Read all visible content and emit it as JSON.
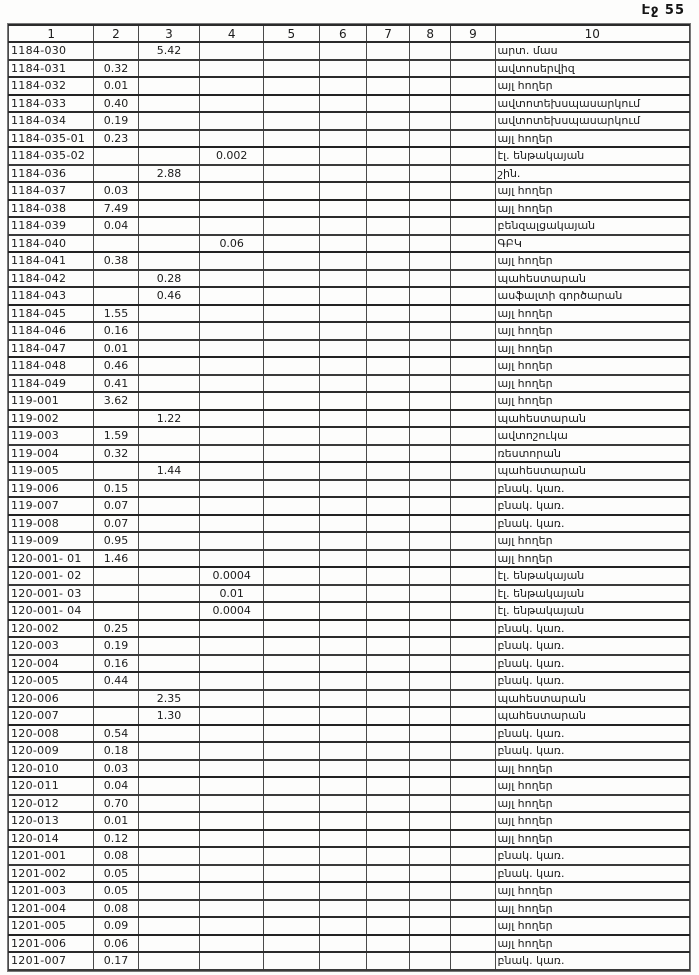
{
  "page": {
    "page_label": "Էջ 55",
    "paper_color": "#fdfdfc",
    "ink_color": "#1c1c1c"
  },
  "table": {
    "headers": [
      "1",
      "2",
      "3",
      "4",
      "5",
      "6",
      "7",
      "8",
      "9",
      "10"
    ],
    "rows": [
      {
        "code": "1184-030",
        "col2": "",
        "col3": "5.42",
        "col4": "",
        "landuse": "արտ. մաս"
      },
      {
        "code": "1184-031",
        "col2": "0.32",
        "col3": "",
        "col4": "",
        "landuse": "ավտոսերվիզ"
      },
      {
        "code": "1184-032",
        "col2": "0.01",
        "col3": "",
        "col4": "",
        "landuse": "այլ հողեր"
      },
      {
        "code": "1184-033",
        "col2": "0.40",
        "col3": "",
        "col4": "",
        "landuse": "ավտոտեխսպասարկում"
      },
      {
        "code": "1184-034",
        "col2": "0.19",
        "col3": "",
        "col4": "",
        "landuse": "ավտոտեխսպասարկում"
      },
      {
        "code": "1184-035-01",
        "col2": "0.23",
        "col3": "",
        "col4": "",
        "landuse": "այլ հողեր"
      },
      {
        "code": "1184-035-02",
        "col2": "",
        "col3": "",
        "col4": "0.002",
        "landuse": "էլ. ենթակայան"
      },
      {
        "code": "1184-036",
        "col2": "",
        "col3": "2.88",
        "col4": "",
        "landuse": "շին."
      },
      {
        "code": "1184-037",
        "col2": "0.03",
        "col3": "",
        "col4": "",
        "landuse": "այլ հողեր"
      },
      {
        "code": "1184-038",
        "col2": "7.49",
        "col3": "",
        "col4": "",
        "landuse": "այլ հողեր"
      },
      {
        "code": "1184-039",
        "col2": "0.04",
        "col3": "",
        "col4": "",
        "landuse": "բենզալցակայան"
      },
      {
        "code": "1184-040",
        "col2": "",
        "col3": "",
        "col4": "0.06",
        "landuse": "ԳԲԿ"
      },
      {
        "code": "1184-041",
        "col2": "0.38",
        "col3": "",
        "col4": "",
        "landuse": "այլ հողեր"
      },
      {
        "code": "1184-042",
        "col2": "",
        "col3": "0.28",
        "col4": "",
        "landuse": "պահեստարան"
      },
      {
        "code": "1184-043",
        "col2": "",
        "col3": "0.46",
        "col4": "",
        "landuse": "ասֆալտի գործարան"
      },
      {
        "code": "1184-045",
        "col2": "1.55",
        "col3": "",
        "col4": "",
        "landuse": "այլ հողեր"
      },
      {
        "code": "1184-046",
        "col2": "0.16",
        "col3": "",
        "col4": "",
        "landuse": "այլ հողեր"
      },
      {
        "code": "1184-047",
        "col2": "0.01",
        "col3": "",
        "col4": "",
        "landuse": "այլ հողեր"
      },
      {
        "code": "1184-048",
        "col2": "0.46",
        "col3": "",
        "col4": "",
        "landuse": "այլ հողեր"
      },
      {
        "code": "1184-049",
        "col2": "0.41",
        "col3": "",
        "col4": "",
        "landuse": "այլ հողեր"
      },
      {
        "code": "119-001",
        "col2": "3.62",
        "col3": "",
        "col4": "",
        "landuse": "այլ հողեր"
      },
      {
        "code": "119-002",
        "col2": "",
        "col3": "1.22",
        "col4": "",
        "landuse": "պահեստարան"
      },
      {
        "code": "119-003",
        "col2": "1.59",
        "col3": "",
        "col4": "",
        "landuse": "ավտոշուկա"
      },
      {
        "code": "119-004",
        "col2": "0.32",
        "col3": "",
        "col4": "",
        "landuse": "ռեստորան"
      },
      {
        "code": "119-005",
        "col2": "",
        "col3": "1.44",
        "col4": "",
        "landuse": "պահեստարան"
      },
      {
        "code": "119-006",
        "col2": "0.15",
        "col3": "",
        "col4": "",
        "landuse": "բնակ. կառ."
      },
      {
        "code": "119-007",
        "col2": "0.07",
        "col3": "",
        "col4": "",
        "landuse": "բնակ. կառ."
      },
      {
        "code": "119-008",
        "col2": "0.07",
        "col3": "",
        "col4": "",
        "landuse": "բնակ. կառ."
      },
      {
        "code": "119-009",
        "col2": "0.95",
        "col3": "",
        "col4": "",
        "landuse": "այլ հողեր"
      },
      {
        "code": "120-001- 01",
        "col2": "1.46",
        "col3": "",
        "col4": "",
        "landuse": "այլ հողեր"
      },
      {
        "code": "120-001- 02",
        "col2": "",
        "col3": "",
        "col4": "0.0004",
        "landuse": "էլ. ենթակայան"
      },
      {
        "code": "120-001- 03",
        "col2": "",
        "col3": "",
        "col4": "0.01",
        "landuse": "էլ. ենթակայան"
      },
      {
        "code": "120-001- 04",
        "col2": "",
        "col3": "",
        "col4": "0.0004",
        "landuse": "էլ. ենթակայան"
      },
      {
        "code": "120-002",
        "col2": "0.25",
        "col3": "",
        "col4": "",
        "landuse": "բնակ. կառ."
      },
      {
        "code": "120-003",
        "col2": "0.19",
        "col3": "",
        "col4": "",
        "landuse": "բնակ. կառ."
      },
      {
        "code": "120-004",
        "col2": "0.16",
        "col3": "",
        "col4": "",
        "landuse": "բնակ. կառ."
      },
      {
        "code": "120-005",
        "col2": "0.44",
        "col3": "",
        "col4": "",
        "landuse": "բնակ. կառ."
      },
      {
        "code": "120-006",
        "col2": "",
        "col3": "2.35",
        "col4": "",
        "landuse": "պահեստարան"
      },
      {
        "code": "120-007",
        "col2": "",
        "col3": "1.30",
        "col4": "",
        "landuse": "պահեստարան"
      },
      {
        "code": "120-008",
        "col2": "0.54",
        "col3": "",
        "col4": "",
        "landuse": "բնակ. կառ."
      },
      {
        "code": "120-009",
        "col2": "0.18",
        "col3": "",
        "col4": "",
        "landuse": "բնակ. կառ."
      },
      {
        "code": "120-010",
        "col2": "0.03",
        "col3": "",
        "col4": "",
        "landuse": "այլ հողեր"
      },
      {
        "code": "120-011",
        "col2": "0.04",
        "col3": "",
        "col4": "",
        "landuse": "այլ հողեր"
      },
      {
        "code": "120-012",
        "col2": "0.70",
        "col3": "",
        "col4": "",
        "landuse": "այլ հողեր"
      },
      {
        "code": "120-013",
        "col2": "0.01",
        "col3": "",
        "col4": "",
        "landuse": "այլ հողեր"
      },
      {
        "code": "120-014",
        "col2": "0.12",
        "col3": "",
        "col4": "",
        "landuse": "այլ հողեր"
      },
      {
        "code": "1201-001",
        "col2": "0.08",
        "col3": "",
        "col4": "",
        "landuse": "բնակ. կառ."
      },
      {
        "code": "1201-002",
        "col2": "0.05",
        "col3": "",
        "col4": "",
        "landuse": "բնակ. կառ."
      },
      {
        "code": "1201-003",
        "col2": "0.05",
        "col3": "",
        "col4": "",
        "landuse": "այլ հողեր"
      },
      {
        "code": "1201-004",
        "col2": "0.08",
        "col3": "",
        "col4": "",
        "landuse": "այլ հողեր"
      },
      {
        "code": "1201-005",
        "col2": "0.09",
        "col3": "",
        "col4": "",
        "landuse": "այլ հողեր"
      },
      {
        "code": "1201-006",
        "col2": "0.06",
        "col3": "",
        "col4": "",
        "landuse": "այլ հողեր"
      },
      {
        "code": "1201-007",
        "col2": "0.17",
        "col3": "",
        "col4": "",
        "landuse": "բնակ. կառ."
      }
    ]
  }
}
